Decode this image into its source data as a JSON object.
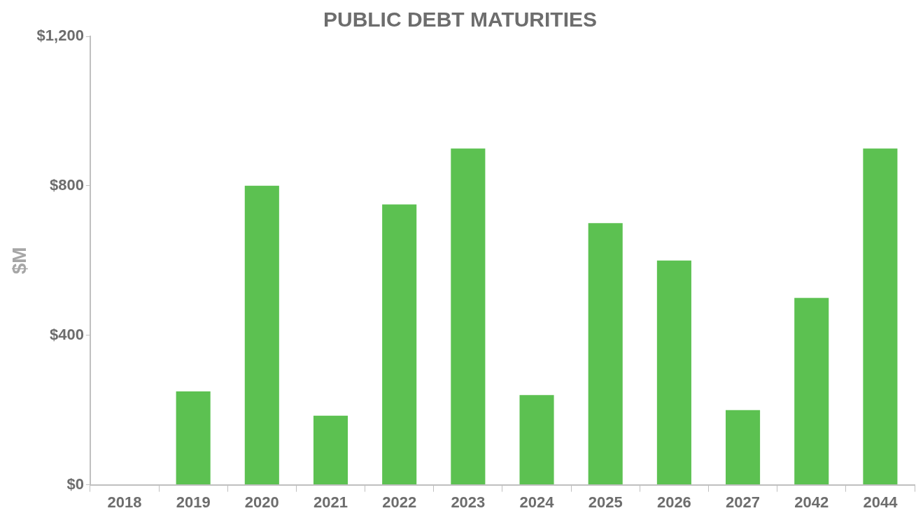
{
  "chart_data": {
    "type": "bar",
    "title": "PUBLIC DEBT MATURITIES",
    "ylabel": "$M",
    "categories": [
      "2018",
      "2019",
      "2020",
      "2021",
      "2022",
      "2023",
      "2024",
      "2025",
      "2026",
      "2027",
      "2042",
      "2044"
    ],
    "values": [
      0,
      250,
      800,
      185,
      750,
      900,
      240,
      700,
      600,
      200,
      500,
      900
    ],
    "color": "#5cc151",
    "ylim": [
      0,
      1200
    ],
    "yticks": [
      {
        "value": 0,
        "label": "$0"
      },
      {
        "value": 400,
        "label": "$400"
      },
      {
        "value": 800,
        "label": "$800"
      },
      {
        "value": 1200,
        "label": "$1,200"
      }
    ],
    "grid": false,
    "legend": false
  }
}
